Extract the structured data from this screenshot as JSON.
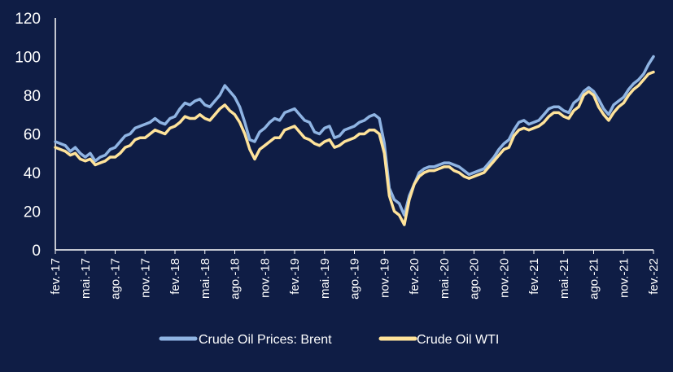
{
  "chart_data": {
    "type": "line",
    "x_tick_labels": [
      "fev.-17",
      "mai.-17",
      "ago.-17",
      "nov.-17",
      "fev.-18",
      "mai.-18",
      "ago.-18",
      "nov.-18",
      "fev.-19",
      "mai.-19",
      "ago.-19",
      "nov.-19",
      "fev.-20",
      "mai.-20",
      "ago.-20",
      "nov.-20",
      "fev.-21",
      "mai.-21",
      "ago.-21",
      "nov.-21",
      "fev.-22"
    ],
    "ylim": [
      0,
      120
    ],
    "yticks": [
      0,
      20,
      40,
      60,
      80,
      100,
      120
    ],
    "grid": false,
    "legend_position": "bottom",
    "x_axis_unit": "month index (0 = fev.-17, 60 = fev.-22)",
    "series": [
      {
        "name": "Crude Oil Prices: Brent",
        "color": "#8fb4e3",
        "x": [
          0,
          0.5,
          1,
          1.5,
          2,
          2.5,
          3,
          3.5,
          4,
          4.5,
          5,
          5.5,
          6,
          6.5,
          7,
          7.5,
          8,
          8.5,
          9,
          9.5,
          10,
          10.5,
          11,
          11.5,
          12,
          12.5,
          13,
          13.5,
          14,
          14.5,
          15,
          15.5,
          16,
          16.5,
          17,
          17.5,
          18,
          18.5,
          19,
          19.5,
          20,
          20.5,
          21,
          21.5,
          22,
          22.5,
          23,
          23.5,
          24,
          24.5,
          25,
          25.5,
          26,
          26.5,
          27,
          27.5,
          28,
          28.5,
          29,
          29.5,
          30,
          30.5,
          31,
          31.5,
          32,
          32.5,
          33,
          33.5,
          34,
          34.5,
          35,
          35.5,
          36,
          36.5,
          37,
          37.5,
          38,
          38.5,
          39,
          39.5,
          40,
          40.5,
          41,
          41.5,
          42,
          42.5,
          43,
          43.5,
          44,
          44.5,
          45,
          45.5,
          46,
          46.5,
          47,
          47.5,
          48,
          48.5,
          49,
          49.5,
          50,
          50.5,
          51,
          51.5,
          52,
          52.5,
          53,
          53.5,
          54,
          54.5,
          55,
          55.5,
          56,
          56.5,
          57,
          57.5,
          58,
          58.5,
          59,
          59.5,
          60
        ],
        "values": [
          56,
          55,
          54,
          51,
          53,
          50,
          48,
          50,
          46,
          48,
          49,
          52,
          53,
          56,
          59,
          60,
          63,
          64,
          65,
          66,
          68,
          66,
          65,
          68,
          69,
          73,
          76,
          75,
          77,
          78,
          75,
          74,
          77,
          80,
          85,
          82,
          79,
          74,
          66,
          57,
          56,
          61,
          63,
          66,
          68,
          67,
          71,
          72,
          73,
          70,
          67,
          66,
          61,
          60,
          63,
          64,
          58,
          59,
          62,
          63,
          64,
          66,
          67,
          69,
          70,
          68,
          55,
          32,
          26,
          24,
          18,
          28,
          34,
          40,
          42,
          43,
          43,
          44,
          45,
          45,
          44,
          43,
          41,
          39,
          40,
          41,
          42,
          45,
          48,
          52,
          55,
          57,
          62,
          66,
          67,
          65,
          66,
          67,
          70,
          73,
          74,
          74,
          72,
          71,
          76,
          78,
          82,
          84,
          82,
          78,
          73,
          70,
          75,
          77,
          79,
          83,
          86,
          88,
          91,
          96,
          100
        ]
      },
      {
        "name": "Crude Oil WTI",
        "color": "#ffe39a",
        "x": [
          0,
          0.5,
          1,
          1.5,
          2,
          2.5,
          3,
          3.5,
          4,
          4.5,
          5,
          5.5,
          6,
          6.5,
          7,
          7.5,
          8,
          8.5,
          9,
          9.5,
          10,
          10.5,
          11,
          11.5,
          12,
          12.5,
          13,
          13.5,
          14,
          14.5,
          15,
          15.5,
          16,
          16.5,
          17,
          17.5,
          18,
          18.5,
          19,
          19.5,
          20,
          20.5,
          21,
          21.5,
          22,
          22.5,
          23,
          23.5,
          24,
          24.5,
          25,
          25.5,
          26,
          26.5,
          27,
          27.5,
          28,
          28.5,
          29,
          29.5,
          30,
          30.5,
          31,
          31.5,
          32,
          32.5,
          33,
          33.5,
          34,
          34.5,
          35,
          35.5,
          36,
          36.5,
          37,
          37.5,
          38,
          38.5,
          39,
          39.5,
          40,
          40.5,
          41,
          41.5,
          42,
          42.5,
          43,
          43.5,
          44,
          44.5,
          45,
          45.5,
          46,
          46.5,
          47,
          47.5,
          48,
          48.5,
          49,
          49.5,
          50,
          50.5,
          51,
          51.5,
          52,
          52.5,
          53,
          53.5,
          54,
          54.5,
          55,
          55.5,
          56,
          56.5,
          57,
          57.5,
          58,
          58.5,
          59,
          59.5,
          60
        ],
        "values": [
          53,
          52,
          51,
          49,
          50,
          47,
          46,
          47,
          44,
          45,
          46,
          48,
          48,
          50,
          53,
          54,
          57,
          58,
          58,
          60,
          62,
          61,
          60,
          63,
          64,
          66,
          69,
          68,
          68,
          70,
          68,
          67,
          70,
          73,
          75,
          72,
          70,
          66,
          60,
          52,
          47,
          52,
          54,
          56,
          58,
          58,
          62,
          63,
          64,
          61,
          58,
          57,
          55,
          54,
          56,
          57,
          53,
          54,
          56,
          57,
          58,
          60,
          60,
          62,
          62,
          60,
          50,
          28,
          20,
          18,
          13,
          26,
          34,
          38,
          40,
          41,
          41,
          42,
          43,
          43,
          41,
          40,
          38,
          37,
          38,
          39,
          40,
          43,
          46,
          49,
          52,
          53,
          59,
          62,
          63,
          62,
          63,
          64,
          66,
          69,
          71,
          71,
          69,
          68,
          72,
          74,
          80,
          82,
          80,
          74,
          70,
          67,
          71,
          74,
          76,
          80,
          83,
          85,
          88,
          91,
          92
        ]
      }
    ]
  }
}
